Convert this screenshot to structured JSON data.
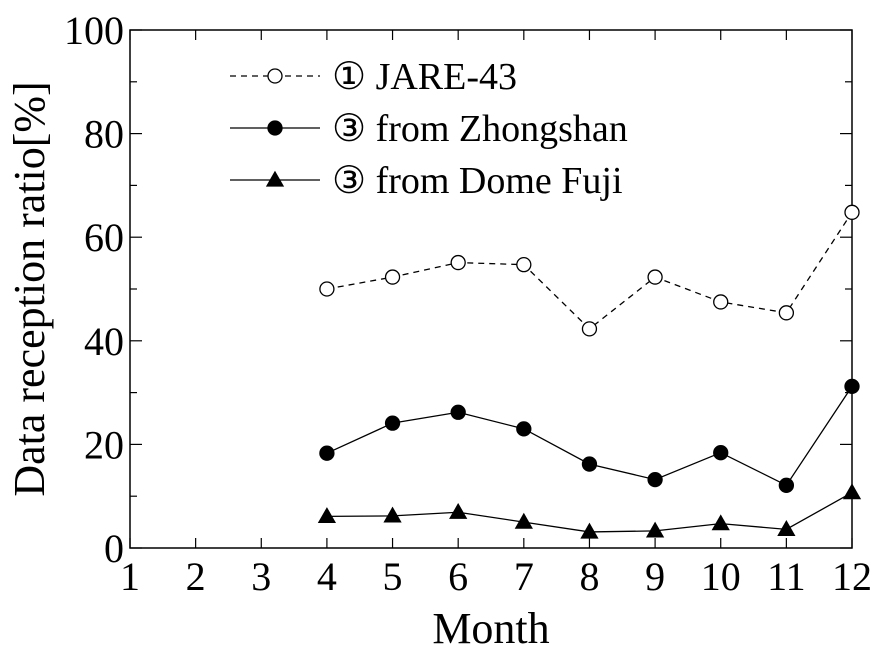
{
  "chart_data": {
    "type": "line",
    "xlabel": "Month",
    "ylabel": "Data reception ratio[%]",
    "xlim": [
      1,
      12
    ],
    "ylim": [
      0,
      100
    ],
    "xticks": [
      1,
      2,
      3,
      4,
      5,
      6,
      7,
      8,
      9,
      10,
      11,
      12
    ],
    "yticks": [
      0,
      20,
      40,
      60,
      80,
      100
    ],
    "grid": false,
    "legend_position": "top-left",
    "series": [
      {
        "name": "① JARE-43",
        "marker": "open-circle",
        "line": "dashed",
        "x": [
          4,
          5,
          6,
          7,
          8,
          9,
          10,
          11,
          12
        ],
        "values": [
          50,
          52.3,
          55.1,
          54.7,
          42.3,
          52.3,
          47.5,
          45.4,
          64.8
        ]
      },
      {
        "name": "③ from Zhongshan",
        "marker": "filled-circle",
        "line": "solid",
        "x": [
          4,
          5,
          6,
          7,
          8,
          9,
          10,
          11,
          12
        ],
        "values": [
          18.3,
          24.1,
          26.2,
          23,
          16.2,
          13.2,
          18.4,
          12.1,
          31.2
        ]
      },
      {
        "name": "③ from Dome Fuji",
        "marker": "filled-triangle",
        "line": "solid",
        "x": [
          4,
          5,
          6,
          7,
          8,
          9,
          10,
          11,
          12
        ],
        "values": [
          6.1,
          6.2,
          6.9,
          5,
          3.1,
          3.3,
          4.7,
          3.6,
          10.7
        ]
      }
    ]
  }
}
